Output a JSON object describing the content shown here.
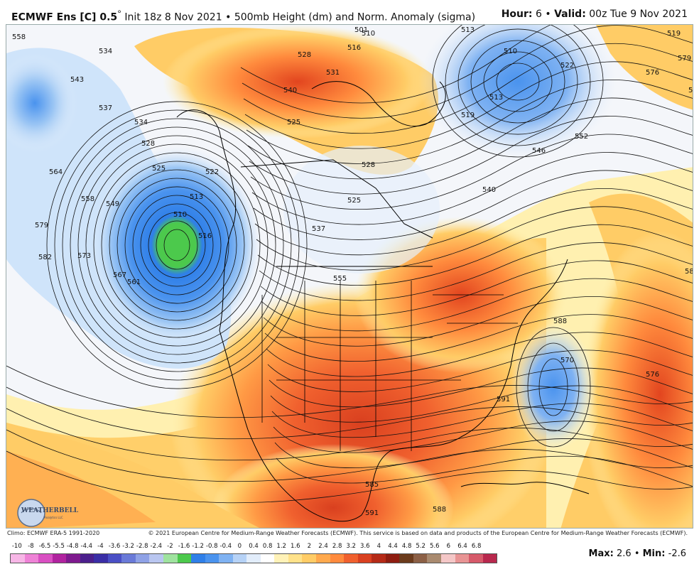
{
  "header": {
    "model": "ECMWF Ens [C] 0.5",
    "degree": "°",
    "init": "Init 18z 8 Nov 2021",
    "bullet": "•",
    "product": "500mb Height (dm) and Norm. Anomaly (sigma)",
    "hour_label": "Hour:",
    "hour_value": "6",
    "valid_label": "Valid:",
    "valid_value": "00z Tue 9 Nov 2021"
  },
  "footer": {
    "climo": "Climo: ECMWF ERA-5 1991-2020",
    "copyright": "© 2021 European Centre for Medium-Range Weather Forecasts (ECMWF). This service is based on data and products of the European Centre for Medium-Range Weather Forecasts (ECMWF)."
  },
  "logo": {
    "text": "WEATHERBELL",
    "subtext": "Analytics LLC"
  },
  "stats": {
    "max_label": "Max:",
    "max_value": "2.6",
    "sep": "•",
    "min_label": "Min:",
    "min_value": "-2.6"
  },
  "colorbar": {
    "labels": [
      "-10",
      "-8",
      "-6.5",
      "-5.5",
      "-4.8",
      "-4.4",
      "-4",
      "-3.6",
      "-3.2",
      "-2.8",
      "-2.4",
      "-2",
      "-1.6",
      "-1.2",
      "-0.8",
      "-0.4",
      "0",
      "0.4",
      "0.8",
      "1.2",
      "1.6",
      "2",
      "2.4",
      "2.8",
      "3.2",
      "3.6",
      "4",
      "4.4",
      "4.8",
      "5.2",
      "5.6",
      "6",
      "6.4",
      "6.8"
    ],
    "colors": [
      "#f7b6e6",
      "#ee82d6",
      "#d94fc2",
      "#b0239f",
      "#7e1a8e",
      "#4b1f8c",
      "#3a2ea6",
      "#4a4fc5",
      "#6a7ad8",
      "#8fa2e6",
      "#b9c6f0",
      "#9fe39f",
      "#4cc94c",
      "#2f7fe8",
      "#4a93ee",
      "#7fb2f2",
      "#b6d2f6",
      "#e2edfb",
      "#ffffff",
      "#fff2b8",
      "#ffe28a",
      "#ffcc66",
      "#ffa94d",
      "#ff8a3d",
      "#f0602e",
      "#d94020",
      "#b52a17",
      "#8e1d10",
      "#6b3b1c",
      "#8c6046",
      "#a98a6f",
      "#f4c7c7",
      "#e89494",
      "#d65a6a",
      "#b8284d"
    ]
  },
  "map": {
    "anomaly_colors": {
      "strong_positive": "#e2451f",
      "positive": "#ff8a3d",
      "weak_positive": "#ffcc66",
      "slight_positive": "#fff0b0",
      "neutral": "#f4f6fa",
      "slight_negative": "#cfe4fa",
      "negative": "#7fb2f2",
      "strong_negative": "#2f7fe8",
      "extreme_negative": "#4cc94c"
    },
    "contour_labels": [
      "558",
      "534",
      "543",
      "534",
      "528",
      "525",
      "522",
      "564",
      "558",
      "549",
      "579",
      "582",
      "573",
      "567",
      "561",
      "516",
      "513",
      "510",
      "537",
      "540",
      "531",
      "528",
      "510",
      "501",
      "516",
      "525",
      "528",
      "525",
      "537",
      "555",
      "540",
      "546",
      "552",
      "519",
      "513",
      "522",
      "510",
      "513",
      "519",
      "576",
      "570",
      "579",
      "582",
      "588",
      "570",
      "576",
      "591",
      "585",
      "588",
      "591"
    ]
  }
}
